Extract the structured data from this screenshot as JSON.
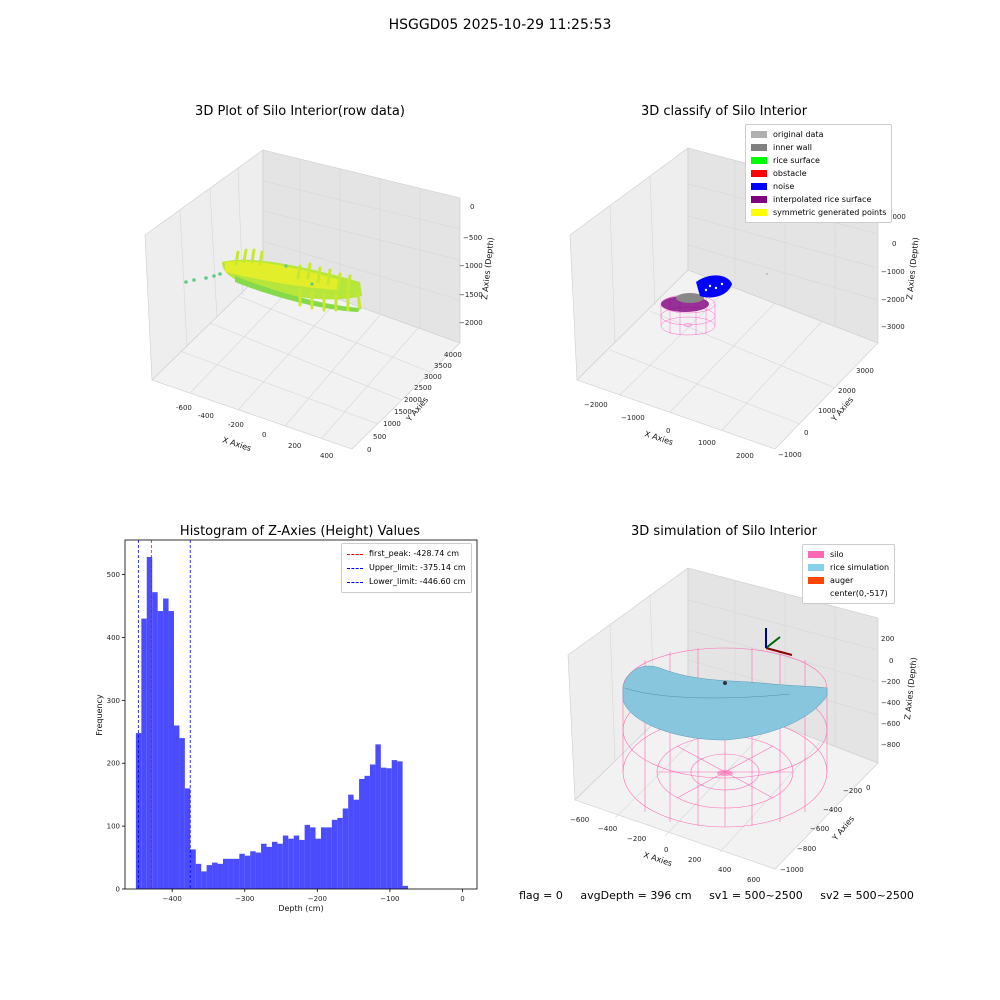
{
  "suptitle": "HSGGD05 2025-10-29 11:25:53",
  "panels": {
    "raw": {
      "title": "3D Plot of Silo Interior(row data)",
      "xlabel": "X Axies",
      "ylabel": "Y Axies",
      "zlabel": "Z Axies (Depth)",
      "xticks": [
        "-600",
        "-400",
        "-200",
        "0",
        "200",
        "400"
      ],
      "yticks": [
        "0",
        "500",
        "1000",
        "1500",
        "2000",
        "2500",
        "3000",
        "3500",
        "4000"
      ],
      "zticks": [
        "0",
        "−500",
        "−1000",
        "−1500",
        "−2000"
      ]
    },
    "classify": {
      "title": "3D classify of Silo Interior",
      "xlabel": "X Axies",
      "ylabel": "Y Axies",
      "zlabel": "Z Axies (Depth)",
      "xticks": [
        "−2000",
        "−1000",
        "0",
        "1000",
        "2000"
      ],
      "yticks": [
        "−1000",
        "0",
        "1000",
        "2000",
        "3000"
      ],
      "zticks": [
        "1000",
        "0",
        "−1000",
        "−2000",
        "−3000"
      ],
      "legend": [
        {
          "label": "original data",
          "color": "#b0b0b0"
        },
        {
          "label": "inner wall",
          "color": "#808080"
        },
        {
          "label": "rice surface",
          "color": "#00ff00"
        },
        {
          "label": "obstacle",
          "color": "#ff0000"
        },
        {
          "label": "noise",
          "color": "#0000ff"
        },
        {
          "label": "interpolated rice surface",
          "color": "#800080"
        },
        {
          "label": "symmetric generated points",
          "color": "#ffff00"
        }
      ]
    },
    "simulation": {
      "title": "3D simulation of Silo Interior",
      "xlabel": "X Axies",
      "ylabel": "Y Axies",
      "zlabel": "Z Axies (Depth)",
      "xticks": [
        "−600",
        "−400",
        "−200",
        "0",
        "200",
        "400",
        "600"
      ],
      "yticks": [
        "−1000",
        "−800",
        "−600",
        "−400",
        "−200",
        "0"
      ],
      "zticks": [
        "200",
        "0",
        "−200",
        "−400",
        "−600",
        "−800"
      ],
      "legend": [
        {
          "label": "silo",
          "color": "#ff69b4"
        },
        {
          "label": "rice simulation",
          "color": "#87ceeb"
        },
        {
          "label": "auger",
          "color": "#ff4500"
        },
        {
          "label": "center(0,-517)",
          "color": ""
        }
      ]
    }
  },
  "chart_data": {
    "type": "bar",
    "title": "Histogram of Z-Axies (Height) Values",
    "xlabel": "Depth (cm)",
    "ylabel": "Frequency",
    "xlim": [
      -465,
      20
    ],
    "ylim": [
      0,
      555
    ],
    "bar_color": "#0000ff",
    "xticks": [
      -400,
      -300,
      -200,
      -100,
      0
    ],
    "yticks": [
      0,
      100,
      200,
      300,
      400,
      500
    ],
    "bin_start": -450,
    "bin_width": 7.5,
    "values": [
      248,
      430,
      528,
      472,
      442,
      462,
      442,
      260,
      240,
      160,
      63,
      40,
      28,
      38,
      42,
      40,
      48,
      48,
      48,
      56,
      53,
      60,
      58,
      72,
      67,
      75,
      72,
      85,
      80,
      85,
      78,
      102,
      98,
      80,
      98,
      98,
      110,
      113,
      128,
      150,
      142,
      175,
      180,
      198,
      230,
      193,
      192,
      205,
      203,
      5
    ],
    "lines": [
      {
        "label": "first_peak: -428.74 cm",
        "x": -428.74,
        "color": "#ff0000"
      },
      {
        "label": "Upper_limit: -375.14 cm",
        "x": -375.14,
        "color": "#0000ff"
      },
      {
        "label": "Lower_limit: -446.60 cm",
        "x": -446.6,
        "color": "#0000ff"
      }
    ]
  },
  "status": {
    "flag": "flag = 0",
    "avg_depth": "avgDepth = 396 cm",
    "sv1": "sv1 = 500~2500",
    "sv2": "sv2 = 500~2500"
  }
}
